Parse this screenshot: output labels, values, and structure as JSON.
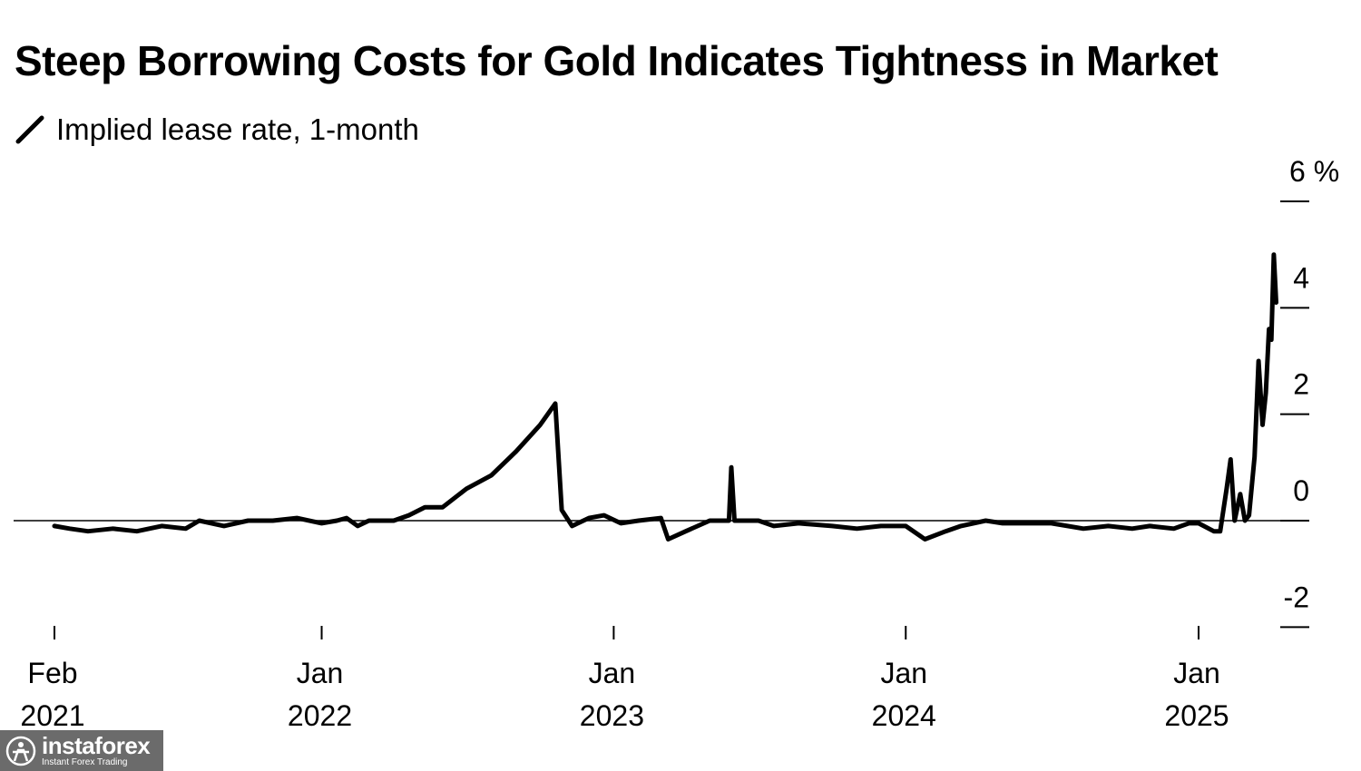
{
  "chart_data": {
    "type": "line",
    "title": "Steep Borrowing Costs for Gold Indicates Tightness in Market",
    "series": [
      {
        "name": "Implied lease rate, 1-month",
        "color": "#000000",
        "points": [
          [
            "2021-02-01",
            -0.1
          ],
          [
            "2021-02-20",
            -0.15
          ],
          [
            "2021-03-15",
            -0.2
          ],
          [
            "2021-04-15",
            -0.15
          ],
          [
            "2021-05-15",
            -0.2
          ],
          [
            "2021-06-15",
            -0.1
          ],
          [
            "2021-07-15",
            -0.15
          ],
          [
            "2021-08-01",
            0.0
          ],
          [
            "2021-09-01",
            -0.1
          ],
          [
            "2021-10-01",
            0.0
          ],
          [
            "2021-11-01",
            0.0
          ],
          [
            "2021-12-01",
            0.05
          ],
          [
            "2022-01-01",
            -0.05
          ],
          [
            "2022-01-20",
            0.0
          ],
          [
            "2022-02-01",
            0.05
          ],
          [
            "2022-02-15",
            -0.1
          ],
          [
            "2022-03-01",
            0.0
          ],
          [
            "2022-04-01",
            0.0
          ],
          [
            "2022-04-20",
            0.1
          ],
          [
            "2022-05-10",
            0.25
          ],
          [
            "2022-06-01",
            0.25
          ],
          [
            "2022-07-01",
            0.6
          ],
          [
            "2022-08-01",
            0.85
          ],
          [
            "2022-09-01",
            1.3
          ],
          [
            "2022-10-01",
            1.8
          ],
          [
            "2022-10-20",
            2.2
          ],
          [
            "2022-10-28",
            0.2
          ],
          [
            "2022-11-10",
            -0.1
          ],
          [
            "2022-12-01",
            0.05
          ],
          [
            "2022-12-20",
            0.1
          ],
          [
            "2023-01-10",
            -0.05
          ],
          [
            "2023-02-01",
            0.0
          ],
          [
            "2023-03-01",
            0.05
          ],
          [
            "2023-03-10",
            -0.35
          ],
          [
            "2023-04-01",
            -0.2
          ],
          [
            "2023-05-01",
            0.0
          ],
          [
            "2023-05-25",
            0.0
          ],
          [
            "2023-05-28",
            1.0
          ],
          [
            "2023-06-01",
            0.0
          ],
          [
            "2023-07-01",
            0.0
          ],
          [
            "2023-07-20",
            -0.1
          ],
          [
            "2023-08-20",
            -0.05
          ],
          [
            "2023-10-01",
            -0.1
          ],
          [
            "2023-11-01",
            -0.15
          ],
          [
            "2023-12-01",
            -0.1
          ],
          [
            "2024-01-01",
            -0.1
          ],
          [
            "2024-01-25",
            -0.35
          ],
          [
            "2024-02-20",
            -0.2
          ],
          [
            "2024-03-10",
            -0.1
          ],
          [
            "2024-04-10",
            0.0
          ],
          [
            "2024-05-01",
            -0.05
          ],
          [
            "2024-07-01",
            -0.05
          ],
          [
            "2024-08-10",
            -0.15
          ],
          [
            "2024-09-10",
            -0.1
          ],
          [
            "2024-10-10",
            -0.15
          ],
          [
            "2024-11-01",
            -0.1
          ],
          [
            "2024-12-01",
            -0.15
          ],
          [
            "2024-12-20",
            -0.05
          ],
          [
            "2025-01-01",
            -0.05
          ],
          [
            "2025-01-20",
            -0.2
          ],
          [
            "2025-01-28",
            -0.2
          ],
          [
            "2025-02-05",
            0.6
          ],
          [
            "2025-02-10",
            1.15
          ],
          [
            "2025-02-15",
            0.0
          ],
          [
            "2025-02-22",
            0.5
          ],
          [
            "2025-02-28",
            0.0
          ],
          [
            "2025-03-05",
            0.1
          ],
          [
            "2025-03-12",
            1.2
          ],
          [
            "2025-03-17",
            3.0
          ],
          [
            "2025-03-22",
            1.8
          ],
          [
            "2025-03-26",
            2.4
          ],
          [
            "2025-03-30",
            3.6
          ],
          [
            "2025-04-02",
            3.4
          ],
          [
            "2025-04-05",
            5.0
          ],
          [
            "2025-04-08",
            4.1
          ]
        ]
      }
    ],
    "x_ticks": [
      {
        "date": "2021-02-01",
        "line1": "Feb",
        "line2": "2021"
      },
      {
        "date": "2022-01-01",
        "line1": "Jan",
        "line2": "2022"
      },
      {
        "date": "2023-01-01",
        "line1": "Jan",
        "line2": "2023"
      },
      {
        "date": "2024-01-01",
        "line1": "Jan",
        "line2": "2024"
      },
      {
        "date": "2025-01-01",
        "line1": "Jan",
        "line2": "2025"
      }
    ],
    "y_ticks": [
      {
        "value": 6,
        "label": "6 %"
      },
      {
        "value": 4,
        "label": "4"
      },
      {
        "value": 2,
        "label": "2"
      },
      {
        "value": 0,
        "label": "0"
      },
      {
        "value": -2,
        "label": "-2"
      }
    ],
    "xlim": [
      "2021-02-01",
      "2025-04-30"
    ],
    "ylim": [
      -2,
      6
    ],
    "y_axis_side": "right",
    "zero_line": true,
    "grid": false,
    "legend_position": "top-left"
  },
  "watermark": {
    "name": "instaforex",
    "tagline": "Instant Forex Trading"
  }
}
